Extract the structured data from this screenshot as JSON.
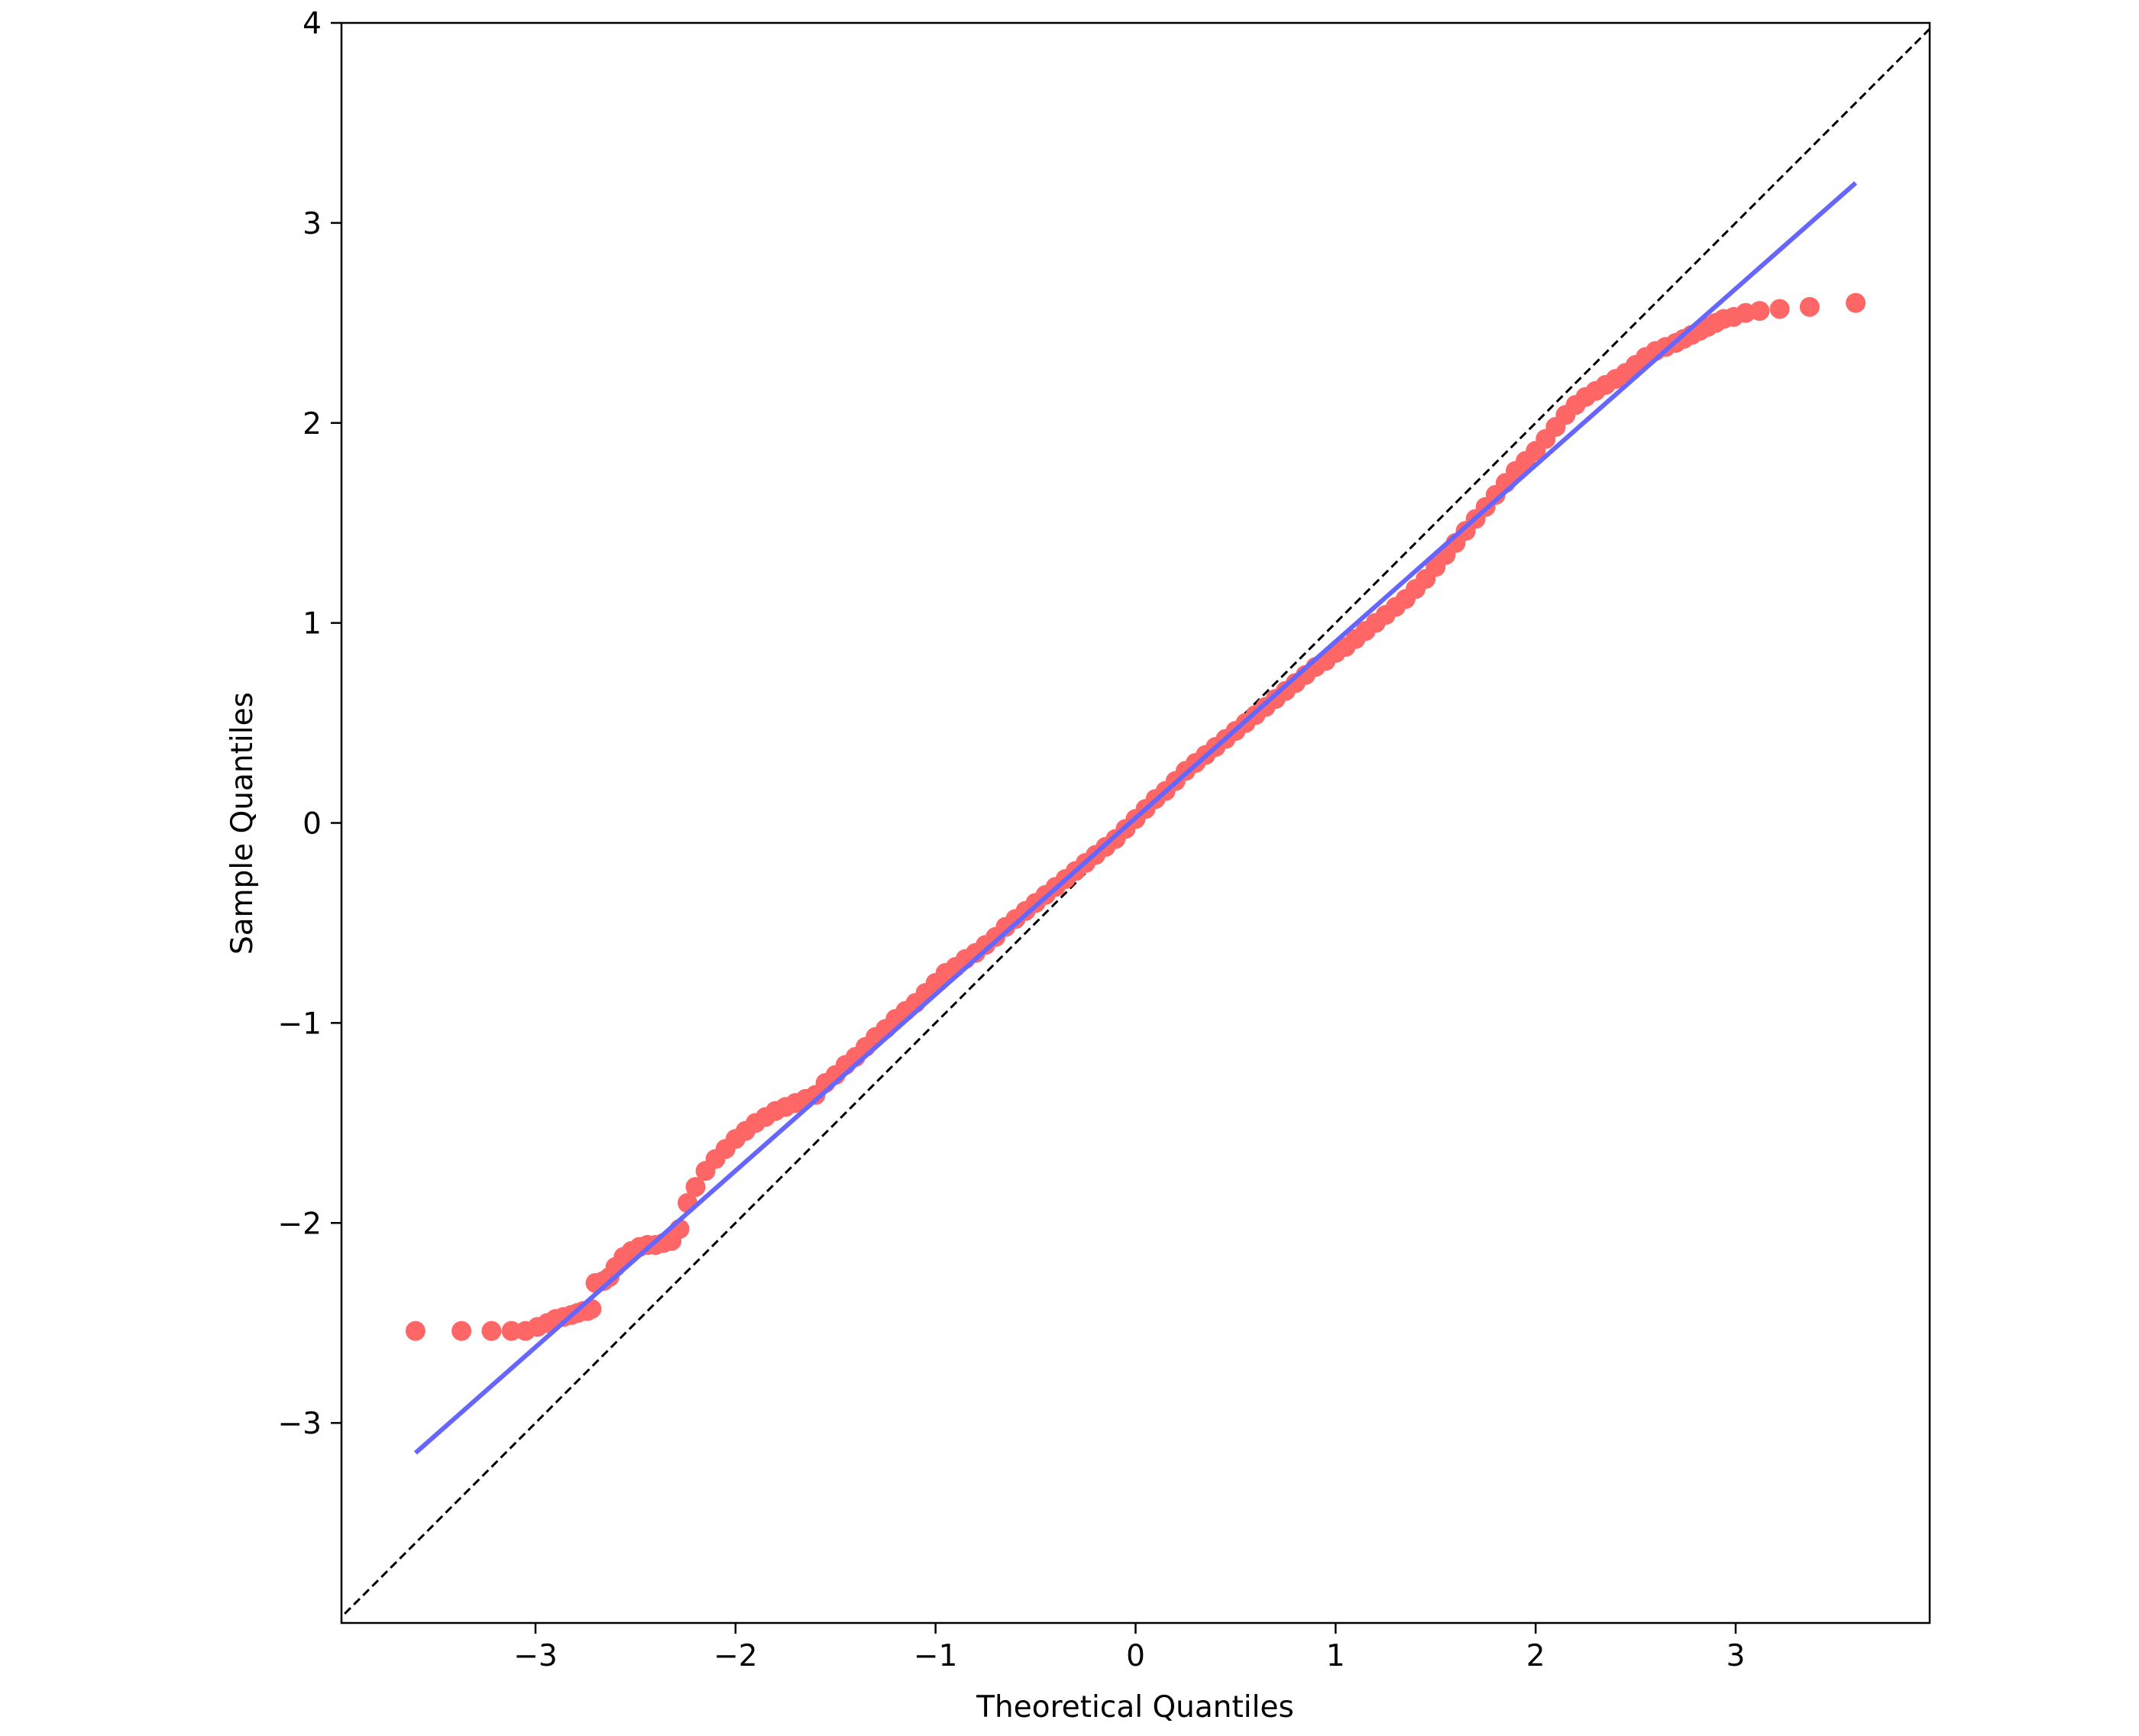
{
  "chart_data": {
    "type": "scatter",
    "title": "",
    "xlabel": "Theoretical Quantiles",
    "ylabel": "Sample Quantiles",
    "xlim": [
      -3.97,
      3.97
    ],
    "ylim": [
      -4.0,
      4.0
    ],
    "xticks": [
      {
        "value": -3,
        "label": "−3"
      },
      {
        "value": -2,
        "label": "−2"
      },
      {
        "value": -1,
        "label": "−1"
      },
      {
        "value": 0,
        "label": "0"
      },
      {
        "value": 1,
        "label": "1"
      },
      {
        "value": 2,
        "label": "2"
      },
      {
        "value": 3,
        "label": "3"
      }
    ],
    "yticks": [
      {
        "value": -3,
        "label": "−3"
      },
      {
        "value": -2,
        "label": "−2"
      },
      {
        "value": -1,
        "label": "−1"
      },
      {
        "value": 0,
        "label": "0"
      },
      {
        "value": 1,
        "label": "1"
      },
      {
        "value": 2,
        "label": "2"
      },
      {
        "value": 3,
        "label": "3"
      },
      {
        "value": 4,
        "label": "4"
      }
    ],
    "grid": false,
    "legend": "none",
    "colors": {
      "points": "#ff6666",
      "fit_line": "#6666ff",
      "reference_line": "#000000"
    },
    "series": [
      {
        "kind": "points",
        "x": [
          -3.6,
          -3.37,
          -3.22,
          -3.12,
          -3.05,
          -2.99,
          -2.94,
          -2.9,
          -2.86,
          -2.82,
          -2.79,
          -2.76,
          -2.74,
          -2.72,
          -2.7,
          -2.66,
          -2.63,
          -2.6,
          -2.56,
          -2.52,
          -2.48,
          -2.44,
          -2.4,
          -2.36,
          -2.32,
          -2.28,
          -2.24,
          -2.2,
          -2.15,
          -2.1,
          -2.05,
          -2.0,
          -1.95,
          -1.9,
          -1.85,
          -1.8,
          -1.75,
          -1.7,
          -1.65,
          -1.6,
          -1.55,
          -1.5,
          -1.45,
          -1.4,
          -1.35,
          -1.3,
          -1.25,
          -1.2,
          -1.15,
          -1.1,
          -1.05,
          -1.0,
          -0.95,
          -0.9,
          -0.85,
          -0.8,
          -0.75,
          -0.7,
          -0.65,
          -0.6,
          -0.55,
          -0.5,
          -0.45,
          -0.4,
          -0.35,
          -0.3,
          -0.25,
          -0.2,
          -0.15,
          -0.1,
          -0.05,
          0.0,
          0.05,
          0.1,
          0.15,
          0.2,
          0.25,
          0.3,
          0.35,
          0.4,
          0.45,
          0.5,
          0.55,
          0.6,
          0.65,
          0.7,
          0.75,
          0.8,
          0.85,
          0.9,
          0.95,
          1.0,
          1.05,
          1.1,
          1.15,
          1.2,
          1.25,
          1.3,
          1.35,
          1.4,
          1.45,
          1.5,
          1.55,
          1.6,
          1.65,
          1.7,
          1.75,
          1.8,
          1.85,
          1.9,
          1.95,
          2.0,
          2.05,
          2.1,
          2.15,
          2.2,
          2.25,
          2.3,
          2.35,
          2.4,
          2.45,
          2.5,
          2.55,
          2.6,
          2.65,
          2.7,
          2.74,
          2.78,
          2.82,
          2.86,
          2.9,
          2.94,
          2.99,
          3.05,
          3.12,
          3.22,
          3.37,
          3.6
        ],
        "y": [
          -2.54,
          -2.54,
          -2.54,
          -2.54,
          -2.54,
          -2.52,
          -2.5,
          -2.48,
          -2.47,
          -2.46,
          -2.45,
          -2.44,
          -2.44,
          -2.43,
          -2.3,
          -2.29,
          -2.27,
          -2.22,
          -2.17,
          -2.14,
          -2.12,
          -2.11,
          -2.11,
          -2.1,
          -2.09,
          -2.03,
          -1.9,
          -1.82,
          -1.74,
          -1.68,
          -1.63,
          -1.58,
          -1.54,
          -1.5,
          -1.47,
          -1.44,
          -1.42,
          -1.4,
          -1.38,
          -1.36,
          -1.3,
          -1.26,
          -1.21,
          -1.17,
          -1.12,
          -1.07,
          -1.03,
          -0.98,
          -0.94,
          -0.9,
          -0.85,
          -0.8,
          -0.75,
          -0.72,
          -0.68,
          -0.65,
          -0.61,
          -0.57,
          -0.52,
          -0.48,
          -0.44,
          -0.4,
          -0.36,
          -0.32,
          -0.28,
          -0.24,
          -0.2,
          -0.16,
          -0.12,
          -0.08,
          -0.03,
          0.02,
          0.07,
          0.12,
          0.16,
          0.21,
          0.26,
          0.3,
          0.34,
          0.38,
          0.42,
          0.46,
          0.5,
          0.54,
          0.58,
          0.62,
          0.66,
          0.7,
          0.74,
          0.78,
          0.81,
          0.85,
          0.88,
          0.92,
          0.96,
          1.0,
          1.04,
          1.08,
          1.12,
          1.17,
          1.22,
          1.28,
          1.34,
          1.4,
          1.46,
          1.52,
          1.58,
          1.64,
          1.7,
          1.76,
          1.81,
          1.86,
          1.92,
          1.98,
          2.04,
          2.09,
          2.13,
          2.16,
          2.19,
          2.22,
          2.25,
          2.29,
          2.33,
          2.36,
          2.38,
          2.4,
          2.42,
          2.44,
          2.46,
          2.48,
          2.5,
          2.52,
          2.53,
          2.55,
          2.56,
          2.57,
          2.58,
          2.6
        ]
      },
      {
        "kind": "fit_line",
        "x": [
          -3.6,
          3.6
        ],
        "y": [
          -3.15,
          3.2
        ]
      },
      {
        "kind": "reference_line",
        "style": "dashed",
        "x": [
          -4.0,
          4.0
        ],
        "y": [
          -4.0,
          4.0
        ]
      }
    ]
  }
}
